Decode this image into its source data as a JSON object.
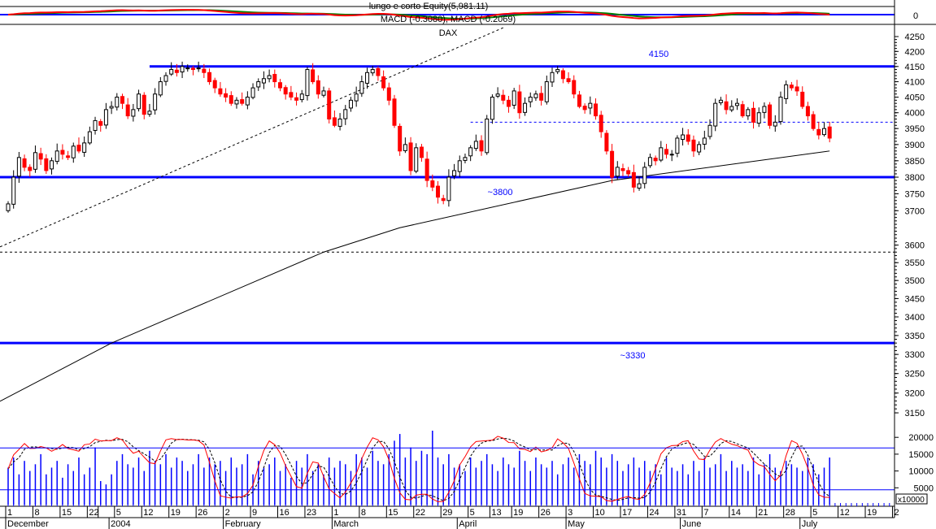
{
  "header": {
    "equity_label": "lungo e corto Equity(5,981.11)",
    "macd_label": "MACD (-0.3080), MACD (-0.2069)",
    "macd_zero_label": "0"
  },
  "colors": {
    "up_body": "#ffffff",
    "down_body": "#ff0000",
    "level_line": "#0000ff",
    "volume": "#0000ff",
    "stoch_k": "#ff0000",
    "stoch_d": "#000000",
    "macd_fast": "#ff0000",
    "macd_slow": "#008000",
    "macd_zero": "#0000ff"
  },
  "chart_data": {
    "type": "candlestick",
    "title": "DAX",
    "yscale": "log",
    "ylim": [
      3150,
      4250
    ],
    "y_ticks": [
      "4250",
      "4200",
      "4150",
      "4100",
      "4050",
      "4000",
      "3950",
      "3900",
      "3850",
      "3800",
      "3750",
      "3700",
      "3600",
      "3550",
      "3500",
      "3450",
      "3400",
      "3350",
      "3300",
      "3250",
      "3200",
      "3150"
    ],
    "start_date": "2003-12-01",
    "closes": [
      3720,
      3800,
      3860,
      3830,
      3820,
      3875,
      3855,
      3820,
      3850,
      3880,
      3870,
      3860,
      3895,
      3880,
      3905,
      3940,
      3975,
      3960,
      4010,
      4020,
      4050,
      4030,
      3990,
      4010,
      4060,
      3995,
      4005,
      4060,
      4100,
      4120,
      4140,
      4130,
      4150,
      4145,
      4140,
      4145,
      4130,
      4100,
      4080,
      4060,
      4050,
      4030,
      4040,
      4030,
      4050,
      4080,
      4100,
      4110,
      4120,
      4100,
      4080,
      4060,
      4050,
      4040,
      4060,
      4140,
      4100,
      4060,
      4070,
      3980,
      3960,
      3980,
      4010,
      4040,
      4060,
      4100,
      4130,
      4140,
      4120,
      4080,
      4040,
      3960,
      3880,
      3900,
      3820,
      3890,
      3860,
      3790,
      3770,
      3740,
      3730,
      3800,
      3820,
      3850,
      3860,
      3890,
      3910,
      3880,
      3980,
      4050,
      4060,
      4040,
      4020,
      4070,
      4000,
      4030,
      4050,
      4060,
      4040,
      4100,
      4130,
      4140,
      4110,
      4100,
      4060,
      4020,
      4010,
      4030,
      3990,
      3940,
      3880,
      3800,
      3830,
      3820,
      3810,
      3770,
      3780,
      3830,
      3860,
      3850,
      3890,
      3870,
      3870,
      3920,
      3930,
      3910,
      3880,
      3900,
      3920,
      3960,
      4030,
      4040,
      4010,
      4020,
      4030,
      3990,
      4010,
      3970,
      4000,
      4020,
      3960,
      3970,
      4050,
      4090,
      4080,
      4070,
      4020,
      3990,
      3950,
      3930,
      3950,
      3920
    ],
    "volumes": [
      11000,
      14000,
      9000,
      13000,
      10000,
      12000,
      15000,
      9000,
      11000,
      13000,
      8000,
      12000,
      10000,
      14000,
      9000,
      11000,
      17000,
      7000,
      6000,
      9000,
      13000,
      15000,
      12000,
      11000,
      14000,
      10000,
      16000,
      13000,
      12000,
      15000,
      11000,
      14000,
      13000,
      10000,
      12000,
      15000,
      11000,
      14000,
      12000,
      13000,
      10000,
      14000,
      11000,
      12000,
      15000,
      9000,
      13000,
      11000,
      12000,
      14000,
      10000,
      12000,
      8000,
      13000,
      11000,
      15000,
      10000,
      12000,
      9000,
      14000,
      11000,
      13000,
      12000,
      10000,
      15000,
      14000,
      11000,
      16000,
      13000,
      12000,
      15000,
      19000,
      21000,
      14000,
      17000,
      13000,
      16000,
      15000,
      25000,
      14000,
      12000,
      15000,
      11000,
      12000,
      10000,
      14000,
      11000,
      13000,
      15000,
      12000,
      10000,
      14000,
      12000,
      11000,
      16000,
      13000,
      10000,
      14000,
      12000,
      11000,
      13000,
      9000,
      12000,
      14000,
      11000,
      15000,
      13000,
      12000,
      16000,
      14000,
      11000,
      15000,
      13000,
      10000,
      12000,
      14000,
      11000,
      13000,
      10000,
      12000,
      9000,
      14000,
      11000,
      10000,
      12000,
      9000,
      13000,
      10000,
      14000,
      11000,
      12000,
      15000,
      10000,
      13000,
      11000,
      12000,
      10000,
      14000,
      9000,
      12000,
      15000,
      11000,
      10000,
      13000,
      12000,
      11000,
      10000,
      14000,
      12000,
      9000,
      11000,
      14000
    ],
    "moving_average": [
      [
        "2003-12-01",
        3190
      ],
      [
        "2004-01-02",
        3330
      ],
      [
        "2004-02-26",
        3580
      ],
      [
        "2004-03-17",
        3650
      ],
      [
        "2004-05-13",
        3790
      ],
      [
        "2004-07-08",
        3880
      ]
    ],
    "trendline": [
      [
        "2003-12-01",
        3605
      ],
      [
        "2004-04-14",
        4272
      ]
    ],
    "levels": [
      {
        "value": 4150,
        "label": "4150",
        "from": "2004-01-13"
      },
      {
        "value": 3800,
        "label": "~3800",
        "from": null
      },
      {
        "value": 3330,
        "label": "~3330",
        "from": null
      }
    ],
    "dashed_levels": [
      {
        "value": 3970,
        "from": "2004-04-05",
        "color": "#0000ff"
      },
      {
        "value": 3580,
        "from": null,
        "color": "#000000"
      }
    ],
    "volume_ticks": [
      "20000",
      "15000",
      "10000",
      "5000"
    ],
    "volume_multiplier_label": "x10000",
    "stoch_levels": [
      80,
      20
    ],
    "day_ticks": [
      {
        "label": "1",
        "date": "2003-12-01"
      },
      {
        "label": "8",
        "date": "2003-12-08"
      },
      {
        "label": "15",
        "date": "2003-12-15"
      },
      {
        "label": "22",
        "date": "2003-12-22"
      },
      {
        "label": "",
        "date": "2003-12-29"
      },
      {
        "label": "5",
        "date": "2004-01-05"
      },
      {
        "label": "12",
        "date": "2004-01-12"
      },
      {
        "label": "19",
        "date": "2004-01-19"
      },
      {
        "label": "26",
        "date": "2004-01-26"
      },
      {
        "label": "2",
        "date": "2004-02-02"
      },
      {
        "label": "9",
        "date": "2004-02-09"
      },
      {
        "label": "16",
        "date": "2004-02-16"
      },
      {
        "label": "23",
        "date": "2004-02-23"
      },
      {
        "label": "1",
        "date": "2004-03-01"
      },
      {
        "label": "8",
        "date": "2004-03-08"
      },
      {
        "label": "15",
        "date": "2004-03-15"
      },
      {
        "label": "22",
        "date": "2004-03-22"
      },
      {
        "label": "29",
        "date": "2004-03-29"
      },
      {
        "label": "5",
        "date": "2004-04-05"
      },
      {
        "label": "13",
        "date": "2004-04-13"
      },
      {
        "label": "19",
        "date": "2004-04-19"
      },
      {
        "label": "26",
        "date": "2004-04-26"
      },
      {
        "label": "3",
        "date": "2004-05-03"
      },
      {
        "label": "10",
        "date": "2004-05-10"
      },
      {
        "label": "17",
        "date": "2004-05-17"
      },
      {
        "label": "24",
        "date": "2004-05-24"
      },
      {
        "label": "31",
        "date": "2004-05-31"
      },
      {
        "label": "7",
        "date": "2004-06-07"
      },
      {
        "label": "14",
        "date": "2004-06-14"
      },
      {
        "label": "21",
        "date": "2004-06-21"
      },
      {
        "label": "28",
        "date": "2004-06-28"
      },
      {
        "label": "5",
        "date": "2004-07-05"
      },
      {
        "label": "12",
        "date": "2004-07-12"
      },
      {
        "label": "19",
        "date": "2004-07-19"
      },
      {
        "label": "2",
        "date": "2004-07-26"
      }
    ],
    "month_ticks": [
      {
        "label": "December",
        "date": "2003-12-01"
      },
      {
        "label": "2004",
        "date": "2004-01-02"
      },
      {
        "label": "February",
        "date": "2004-02-02"
      },
      {
        "label": "March",
        "date": "2004-03-01"
      },
      {
        "label": "April",
        "date": "2004-04-01"
      },
      {
        "label": "May",
        "date": "2004-05-03"
      },
      {
        "label": "June",
        "date": "2004-06-01"
      },
      {
        "label": "July",
        "date": "2004-07-01"
      }
    ]
  }
}
